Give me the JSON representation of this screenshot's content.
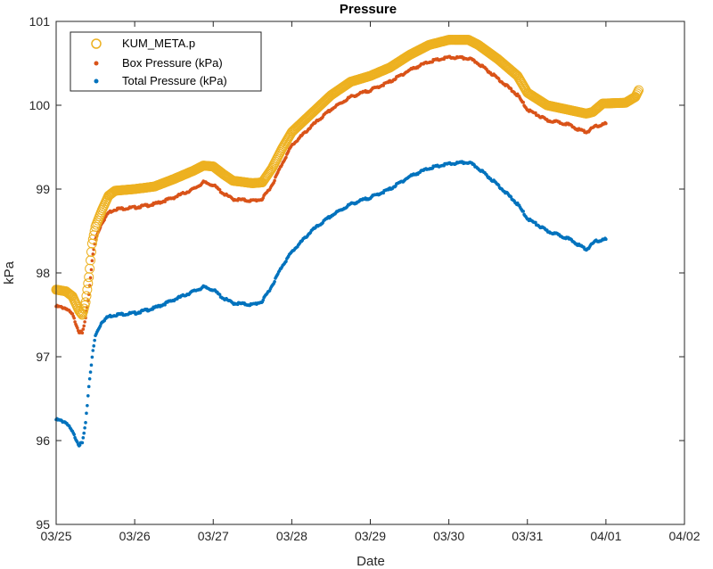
{
  "chart_data": {
    "type": "scatter",
    "title": "Pressure",
    "xlabel": "Date",
    "ylabel": "kPa",
    "x_ticks": [
      "03/25",
      "03/26",
      "03/27",
      "03/28",
      "03/29",
      "03/30",
      "03/31",
      "04/01",
      "04/02"
    ],
    "xlim": [
      "03/25",
      "04/02"
    ],
    "y_ticks": [
      "95",
      "96",
      "97",
      "98",
      "99",
      "100",
      "101"
    ],
    "ylim": [
      95,
      101
    ],
    "grid": false,
    "legend_position": "top-left",
    "series": [
      {
        "name": "KUM_META.p",
        "marker": "circle",
        "color": "#EDB120",
        "points": [
          [
            "03/25 00:00",
            97.8
          ],
          [
            "03/25 03:00",
            97.78
          ],
          [
            "03/25 05:00",
            97.72
          ],
          [
            "03/25 07:00",
            97.55
          ],
          [
            "03/25 08:00",
            97.5
          ],
          [
            "03/25 09:00",
            97.65
          ],
          [
            "03/25 10:00",
            97.95
          ],
          [
            "03/25 11:00",
            98.35
          ],
          [
            "03/25 12:00",
            98.55
          ],
          [
            "03/25 14:00",
            98.75
          ],
          [
            "03/25 16:00",
            98.92
          ],
          [
            "03/25 18:00",
            98.98
          ],
          [
            "03/26 00:00",
            99.0
          ],
          [
            "03/26 06:00",
            99.03
          ],
          [
            "03/26 12:00",
            99.12
          ],
          [
            "03/26 18:00",
            99.22
          ],
          [
            "03/26 21:00",
            99.28
          ],
          [
            "03/27 00:00",
            99.27
          ],
          [
            "03/27 03:00",
            99.18
          ],
          [
            "03/27 06:00",
            99.1
          ],
          [
            "03/27 12:00",
            99.07
          ],
          [
            "03/27 15:00",
            99.08
          ],
          [
            "03/27 18:00",
            99.25
          ],
          [
            "03/27 21:00",
            99.48
          ],
          [
            "03/28 00:00",
            99.68
          ],
          [
            "03/28 06:00",
            99.9
          ],
          [
            "03/28 12:00",
            100.12
          ],
          [
            "03/28 18:00",
            100.28
          ],
          [
            "03/29 00:00",
            100.35
          ],
          [
            "03/29 06:00",
            100.45
          ],
          [
            "03/29 12:00",
            100.6
          ],
          [
            "03/29 18:00",
            100.72
          ],
          [
            "03/30 00:00",
            100.78
          ],
          [
            "03/30 06:00",
            100.78
          ],
          [
            "03/30 09:00",
            100.72
          ],
          [
            "03/30 15:00",
            100.55
          ],
          [
            "03/30 21:00",
            100.35
          ],
          [
            "03/31 00:00",
            100.15
          ],
          [
            "03/31 06:00",
            100.0
          ],
          [
            "03/31 12:00",
            99.95
          ],
          [
            "03/31 18:00",
            99.9
          ],
          [
            "03/31 20:00",
            99.92
          ],
          [
            "03/31 23:00",
            100.02
          ],
          [
            "04/01 06:00",
            100.03
          ],
          [
            "04/01 09:00",
            100.1
          ],
          [
            "04/01 10:00",
            100.18
          ]
        ]
      },
      {
        "name": "Box Pressure (kPa)",
        "marker": "dot",
        "color": "#D95319",
        "points": [
          [
            "03/25 00:00",
            97.6
          ],
          [
            "03/25 03:00",
            97.58
          ],
          [
            "03/25 05:00",
            97.5
          ],
          [
            "03/25 07:00",
            97.3
          ],
          [
            "03/25 08:00",
            97.28
          ],
          [
            "03/25 09:00",
            97.45
          ],
          [
            "03/25 10:00",
            97.75
          ],
          [
            "03/25 11:00",
            98.15
          ],
          [
            "03/25 12:00",
            98.4
          ],
          [
            "03/25 14:00",
            98.6
          ],
          [
            "03/25 16:00",
            98.72
          ],
          [
            "03/25 18:00",
            98.76
          ],
          [
            "03/26 00:00",
            98.78
          ],
          [
            "03/26 06:00",
            98.82
          ],
          [
            "03/26 12:00",
            98.9
          ],
          [
            "03/26 18:00",
            99.0
          ],
          [
            "03/26 21:00",
            99.08
          ],
          [
            "03/27 00:00",
            99.05
          ],
          [
            "03/27 03:00",
            98.95
          ],
          [
            "03/27 06:00",
            98.88
          ],
          [
            "03/27 12:00",
            98.86
          ],
          [
            "03/27 15:00",
            98.88
          ],
          [
            "03/27 18:00",
            99.05
          ],
          [
            "03/27 21:00",
            99.3
          ],
          [
            "03/28 00:00",
            99.52
          ],
          [
            "03/28 06:00",
            99.75
          ],
          [
            "03/28 12:00",
            99.95
          ],
          [
            "03/28 18:00",
            100.1
          ],
          [
            "03/29 00:00",
            100.18
          ],
          [
            "03/29 06:00",
            100.28
          ],
          [
            "03/29 12:00",
            100.42
          ],
          [
            "03/29 18:00",
            100.52
          ],
          [
            "03/30 00:00",
            100.57
          ],
          [
            "03/30 06:00",
            100.56
          ],
          [
            "03/30 09:00",
            100.5
          ],
          [
            "03/30 15:00",
            100.32
          ],
          [
            "03/30 21:00",
            100.12
          ],
          [
            "03/31 00:00",
            99.95
          ],
          [
            "03/31 06:00",
            99.82
          ],
          [
            "03/31 12:00",
            99.78
          ],
          [
            "03/31 15:00",
            99.72
          ],
          [
            "03/31 18:00",
            99.68
          ],
          [
            "03/31 21:00",
            99.75
          ],
          [
            "04/01 00:00",
            99.78
          ]
        ]
      },
      {
        "name": "Total Pressure (kPa)",
        "marker": "dot",
        "color": "#0072BD",
        "points": [
          [
            "03/25 00:00",
            96.25
          ],
          [
            "03/25 03:00",
            96.22
          ],
          [
            "03/25 05:00",
            96.1
          ],
          [
            "03/25 07:00",
            95.95
          ],
          [
            "03/25 08:00",
            95.97
          ],
          [
            "03/25 09:00",
            96.2
          ],
          [
            "03/25 10:00",
            96.65
          ],
          [
            "03/25 11:00",
            97.0
          ],
          [
            "03/25 12:00",
            97.25
          ],
          [
            "03/25 14:00",
            97.42
          ],
          [
            "03/25 16:00",
            97.48
          ],
          [
            "03/25 18:00",
            97.5
          ],
          [
            "03/26 00:00",
            97.52
          ],
          [
            "03/26 06:00",
            97.58
          ],
          [
            "03/26 12:00",
            97.68
          ],
          [
            "03/26 18:00",
            97.78
          ],
          [
            "03/26 21:00",
            97.83
          ],
          [
            "03/27 00:00",
            97.8
          ],
          [
            "03/27 03:00",
            97.7
          ],
          [
            "03/27 06:00",
            97.64
          ],
          [
            "03/27 12:00",
            97.62
          ],
          [
            "03/27 15:00",
            97.66
          ],
          [
            "03/27 18:00",
            97.85
          ],
          [
            "03/27 21:00",
            98.08
          ],
          [
            "03/28 00:00",
            98.25
          ],
          [
            "03/28 06:00",
            98.5
          ],
          [
            "03/28 12:00",
            98.68
          ],
          [
            "03/28 18:00",
            98.82
          ],
          [
            "03/29 00:00",
            98.9
          ],
          [
            "03/29 06:00",
            99.0
          ],
          [
            "03/29 12:00",
            99.15
          ],
          [
            "03/29 18:00",
            99.25
          ],
          [
            "03/30 00:00",
            99.3
          ],
          [
            "03/30 06:00",
            99.32
          ],
          [
            "03/30 09:00",
            99.25
          ],
          [
            "03/30 15:00",
            99.05
          ],
          [
            "03/30 21:00",
            98.82
          ],
          [
            "03/31 00:00",
            98.65
          ],
          [
            "03/31 06:00",
            98.5
          ],
          [
            "03/31 12:00",
            98.42
          ],
          [
            "03/31 15:00",
            98.35
          ],
          [
            "03/31 18:00",
            98.28
          ],
          [
            "03/31 21:00",
            98.38
          ],
          [
            "04/01 00:00",
            98.4
          ]
        ]
      }
    ]
  }
}
